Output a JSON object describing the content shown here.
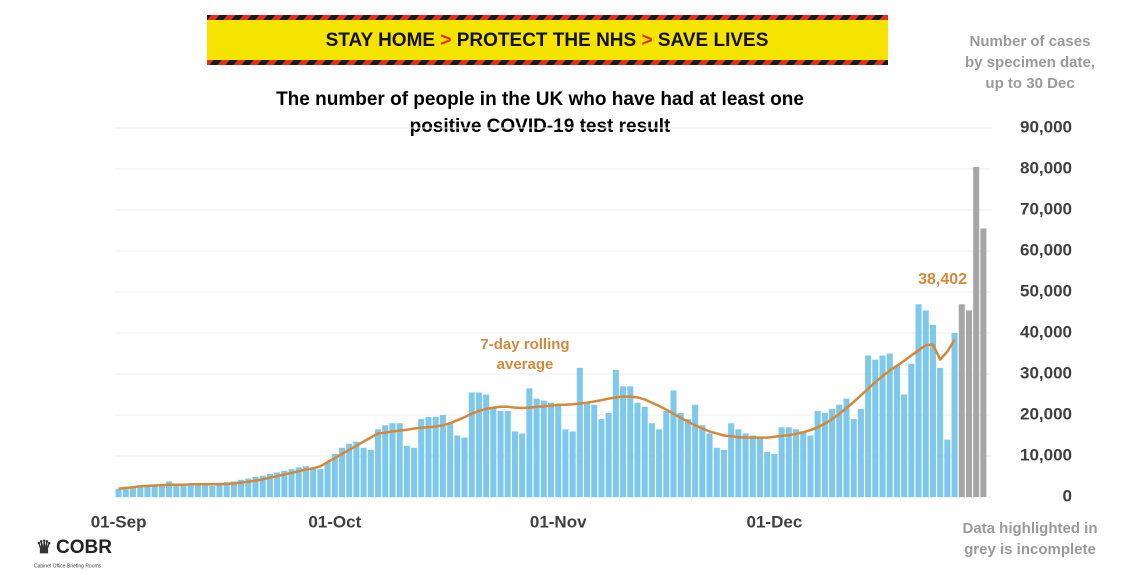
{
  "banner": [
    "STAY HOME",
    ">",
    "PROTECT THE NHS",
    ">",
    "SAVE LIVES"
  ],
  "logo": {
    "name": "COBR",
    "subtitle": "Cabinet Office Briefing Rooms"
  },
  "chart_data": {
    "type": "bar",
    "title": [
      "The number of people in the UK who have had at least one",
      "positive COVID-19 test result"
    ],
    "axis_note": [
      "Number of cases",
      "by specimen date,",
      "up to 30 Dec"
    ],
    "footnote": [
      "Data highlighted in",
      "grey is incomplete"
    ],
    "line_note": [
      "7-day rolling",
      "average"
    ],
    "categories": [
      "01-Sep",
      null,
      null,
      null,
      null,
      null,
      null,
      null,
      null,
      null,
      null,
      null,
      null,
      null,
      null,
      null,
      null,
      null,
      null,
      null,
      null,
      null,
      null,
      null,
      null,
      null,
      null,
      null,
      null,
      null,
      "01-Oct",
      null,
      null,
      null,
      null,
      null,
      null,
      null,
      null,
      null,
      null,
      null,
      null,
      null,
      null,
      null,
      null,
      null,
      null,
      null,
      null,
      null,
      null,
      null,
      null,
      null,
      null,
      null,
      null,
      null,
      null,
      "01-Nov",
      null,
      null,
      null,
      null,
      null,
      null,
      null,
      null,
      null,
      null,
      null,
      null,
      null,
      null,
      null,
      null,
      null,
      null,
      null,
      null,
      null,
      null,
      null,
      null,
      null,
      null,
      null,
      null,
      null,
      "01-Dec",
      null,
      null,
      null,
      null,
      null,
      null,
      null,
      null,
      null,
      null,
      null,
      null,
      null,
      null,
      null,
      null,
      null,
      null,
      null,
      null,
      null,
      null,
      null,
      null,
      null,
      null,
      null,
      null,
      null
    ],
    "ylim": [
      0,
      90000
    ],
    "yticks": [
      0,
      {
        "value": 10000,
        "label": "10,000"
      },
      {
        "value": 20000,
        "label": "20,000"
      },
      {
        "value": 30000,
        "label": "30,000"
      },
      {
        "value": 40000,
        "label": "40,000"
      },
      {
        "value": 50000,
        "label": "50,000"
      },
      {
        "value": 60000,
        "label": "60,000"
      },
      {
        "value": 70000,
        "label": "70,000"
      },
      {
        "value": 80000,
        "label": "80,000"
      },
      {
        "value": 90000,
        "label": "90,000"
      }
    ],
    "grid": true,
    "series": [
      {
        "type": "bar",
        "color": "#7ec8ec",
        "values": [
          2000,
          2500,
          2500,
          2700,
          2800,
          2800,
          3000,
          3800,
          3200,
          3100,
          3000,
          3000,
          2900,
          2700,
          3500,
          3600,
          3800,
          4200,
          4500,
          4900,
          5200,
          5600,
          6000,
          6400,
          6800,
          7200,
          7500,
          7200,
          6800,
          8500,
          10500,
          12000,
          13000,
          13500,
          12000,
          11500,
          16500,
          17500,
          18000,
          18000,
          12500,
          12000,
          19000,
          19500,
          19500,
          20000,
          18000,
          15000,
          14500,
          25500,
          25500,
          25000,
          22000,
          21000,
          21000,
          16000,
          15500,
          26500,
          24000,
          23500,
          23000,
          22500,
          16500,
          16000,
          31500,
          23000,
          22500,
          19000,
          20500,
          31000,
          27000,
          27000,
          23000,
          22000,
          18000,
          16500,
          21000,
          26000,
          20500,
          19000,
          22500,
          17500,
          15500,
          12000,
          11500,
          18000,
          16500,
          15500,
          15000,
          14500,
          11000,
          10500,
          17000,
          17000,
          16500,
          16000,
          15000,
          21000,
          20500,
          21500,
          22500,
          24000,
          19000,
          21500,
          34500,
          33500,
          34500,
          35000,
          32000,
          25000,
          32500,
          47000,
          45500,
          42000,
          31500,
          14000,
          40000,
          null,
          null,
          null,
          null
        ]
      },
      {
        "type": "bar",
        "color": "#a6a6a6",
        "values": [
          null,
          null,
          null,
          null,
          null,
          null,
          null,
          null,
          null,
          null,
          null,
          null,
          null,
          null,
          null,
          null,
          null,
          null,
          null,
          null,
          null,
          null,
          null,
          null,
          null,
          null,
          null,
          null,
          null,
          null,
          null,
          null,
          null,
          null,
          null,
          null,
          null,
          null,
          null,
          null,
          null,
          null,
          null,
          null,
          null,
          null,
          null,
          null,
          null,
          null,
          null,
          null,
          null,
          null,
          null,
          null,
          null,
          null,
          null,
          null,
          null,
          null,
          null,
          null,
          null,
          null,
          null,
          null,
          null,
          null,
          null,
          null,
          null,
          null,
          null,
          null,
          null,
          null,
          null,
          null,
          null,
          null,
          null,
          null,
          null,
          null,
          null,
          null,
          null,
          null,
          null,
          null,
          null,
          null,
          null,
          null,
          null,
          null,
          null,
          null,
          null,
          null,
          null,
          null,
          null,
          null,
          null,
          null,
          null,
          null,
          null,
          null,
          null,
          null,
          null,
          null,
          null,
          47000,
          45500,
          80500,
          65500
        ]
      },
      {
        "type": "line",
        "color": "#d4893a",
        "values": [
          2000,
          2200,
          2400,
          2600,
          2700,
          2800,
          2900,
          3000,
          3000,
          3000,
          3100,
          3100,
          3100,
          3100,
          3100,
          3200,
          3300,
          3500,
          3700,
          4000,
          4300,
          4700,
          5100,
          5500,
          5900,
          6300,
          6700,
          7000,
          7500,
          8500,
          9500,
          10500,
          11500,
          12500,
          13500,
          14500,
          15500,
          15700,
          16000,
          16200,
          16400,
          16700,
          16900,
          17000,
          17200,
          17500,
          18000,
          18700,
          19500,
          20300,
          21000,
          21500,
          21800,
          22000,
          22000,
          21800,
          21700,
          21800,
          22000,
          22100,
          22300,
          22500,
          22500,
          22600,
          22800,
          23000,
          23300,
          23600,
          24000,
          24300,
          24500,
          24500,
          24300,
          23800,
          23000,
          22200,
          21300,
          20300,
          19300,
          18400,
          17500,
          16700,
          16000,
          15500,
          15000,
          14800,
          14600,
          14500,
          14500,
          14500,
          14500,
          14700,
          14900,
          15100,
          15400,
          15800,
          16300,
          17000,
          17900,
          19000,
          20300,
          21700,
          23200,
          24800,
          26400,
          28000,
          29500,
          30800,
          32000,
          33200,
          34500,
          35800,
          37000,
          37200,
          33500,
          35500,
          38402,
          null,
          null,
          null,
          null
        ],
        "value_labels": [
          null,
          null,
          null,
          null,
          null,
          null,
          null,
          null,
          null,
          null,
          null,
          null,
          null,
          null,
          null,
          null,
          null,
          null,
          null,
          null,
          null,
          null,
          null,
          null,
          null,
          null,
          null,
          null,
          null,
          null,
          null,
          null,
          null,
          null,
          null,
          null,
          null,
          null,
          null,
          null,
          null,
          null,
          null,
          null,
          null,
          null,
          null,
          null,
          null,
          null,
          null,
          null,
          null,
          null,
          null,
          null,
          null,
          null,
          null,
          null,
          null,
          null,
          null,
          null,
          null,
          null,
          null,
          null,
          null,
          null,
          null,
          null,
          null,
          null,
          null,
          null,
          null,
          null,
          null,
          null,
          null,
          null,
          null,
          null,
          null,
          null,
          null,
          null,
          null,
          null,
          null,
          null,
          null,
          null,
          null,
          null,
          null,
          null,
          null,
          null,
          null,
          null,
          null,
          null,
          null,
          null,
          null,
          null,
          null,
          null,
          null,
          null,
          null,
          null,
          null,
          null,
          "38,402",
          null,
          null,
          null,
          null
        ]
      }
    ]
  }
}
